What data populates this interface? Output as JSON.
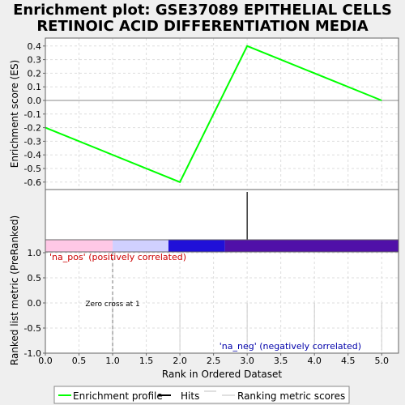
{
  "title_lines": [
    "Enrichment plot: GSE37089 EPITHELIAL CELLS",
    "RETINOIC ACID DIFFERENTIATION MEDIA"
  ],
  "chart_data": {
    "type": "line",
    "title": "Enrichment plot: GSE37089 EPITHELIAL CELLS RETINOIC ACID DIFFERENTIATION MEDIA",
    "xlabel": "Rank in Ordered Dataset",
    "xlim": [
      0,
      5.25
    ],
    "x_ticks": [
      "0.0",
      "0.5",
      "1.0",
      "1.5",
      "2.0",
      "2.5",
      "3.0",
      "3.5",
      "4.0",
      "4.5",
      "5.0"
    ],
    "es_panel": {
      "ylabel": "Enrichment score (ES)",
      "ylim": [
        -0.65,
        0.46
      ],
      "y_ticks": [
        "0.4",
        "0.3",
        "0.2",
        "0.1",
        "0.0",
        "-0.1",
        "-0.2",
        "-0.3",
        "-0.4",
        "-0.5",
        "-0.6"
      ],
      "series": [
        {
          "name": "Enrichment profile",
          "color": "#00ff00",
          "x": [
            0,
            2,
            3,
            5
          ],
          "y": [
            -0.2,
            -0.6,
            0.4,
            0.0
          ]
        }
      ]
    },
    "hits": {
      "x": [
        3
      ]
    },
    "heatmap_bar": [
      {
        "from": 0,
        "to": 1,
        "color": "#ffc8e6"
      },
      {
        "from": 1,
        "to": 1.83,
        "color": "#d0d0ff"
      },
      {
        "from": 1.83,
        "to": 2.67,
        "color": "#2010d8"
      },
      {
        "from": 2.67,
        "to": 5.25,
        "color": "#5010a8"
      }
    ],
    "ranked_panel": {
      "ylabel": "Ranked list metric (PreRanked)",
      "ylim": [
        -1.0,
        1.0
      ],
      "y_ticks": [
        "1.0",
        "0.5",
        "0.0",
        "-0.5",
        "-1.0"
      ],
      "ranking_scores": {
        "x": [
          0,
          1,
          2,
          3,
          4,
          5
        ],
        "y": [
          0,
          0,
          0,
          0,
          0,
          0
        ]
      },
      "zero_cross_x": 1
    },
    "annotations": {
      "pos": "'na_pos' (positively correlated)",
      "neg": "'na_neg' (negatively correlated)",
      "zero_cross": "Zero cross at 1"
    },
    "legend": {
      "position": "bottom",
      "items": [
        {
          "label": "Enrichment profile",
          "color": "#00ff00"
        },
        {
          "label": "Hits",
          "color": "#000000"
        },
        {
          "label": "Ranking metric scores",
          "color": "#c0c0c0"
        }
      ]
    },
    "grid": true
  }
}
